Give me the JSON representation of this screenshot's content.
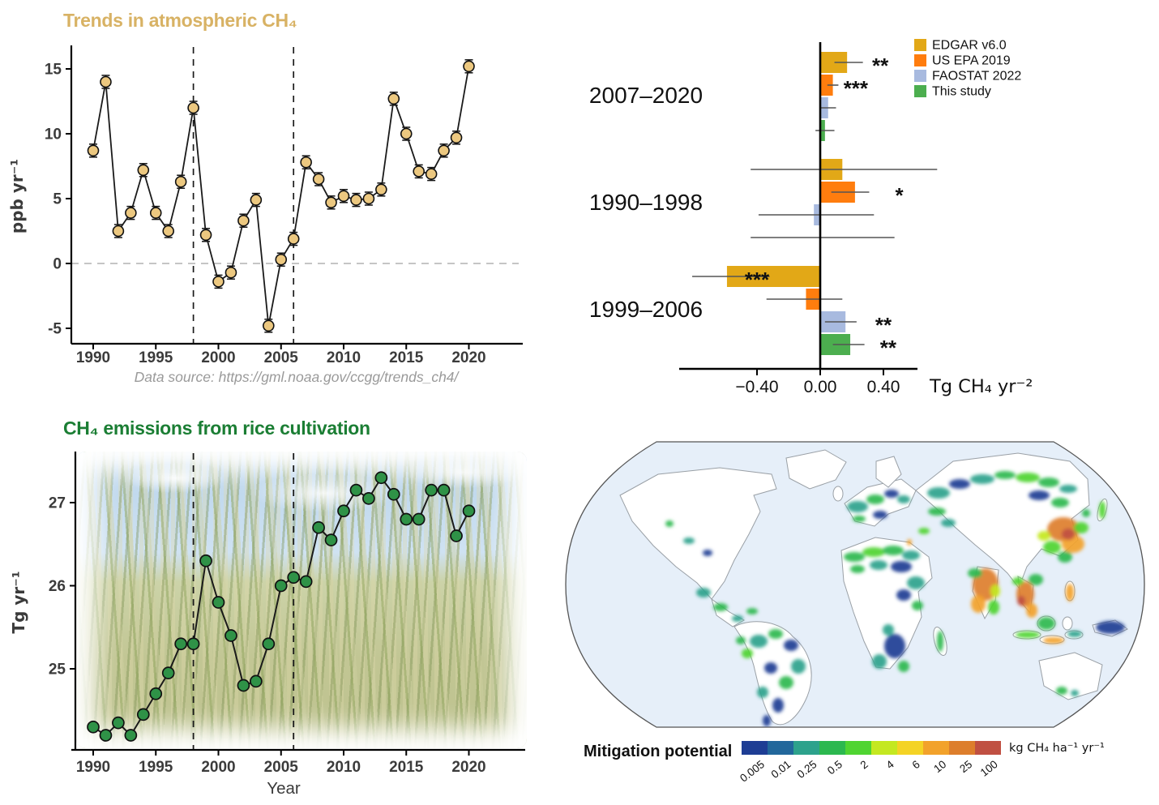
{
  "figure": {
    "background": "#ffffff"
  },
  "chart_data": [
    {
      "type": "line",
      "panel": "top-left",
      "title": "Trends in atmospheric CH₄",
      "ylabel": "ppb yr⁻¹",
      "xlabel": "",
      "source": "Data source: https://gml.noaa.gov/ccgg/trends_ch4/",
      "title_color": "#D8B264",
      "point_color": "#ECC880",
      "line_color": "#1a1a1a",
      "years": [
        1990,
        1991,
        1992,
        1993,
        1994,
        1995,
        1996,
        1997,
        1998,
        1999,
        2000,
        2001,
        2002,
        2003,
        2004,
        2005,
        2006,
        2007,
        2008,
        2009,
        2010,
        2011,
        2012,
        2013,
        2014,
        2015,
        2016,
        2017,
        2018,
        2019,
        2020
      ],
      "values": [
        8.7,
        14.0,
        2.5,
        3.9,
        7.2,
        3.9,
        2.5,
        6.3,
        12.0,
        2.2,
        -1.4,
        -0.7,
        3.3,
        4.9,
        -4.8,
        0.3,
        1.9,
        7.8,
        6.5,
        4.7,
        5.2,
        4.9,
        5.0,
        5.7,
        12.7,
        10.0,
        7.1,
        6.9,
        8.7,
        9.7,
        15.2
      ],
      "error_bar": 0.5,
      "yticks": [
        -5,
        0,
        5,
        10,
        15
      ],
      "xticks": [
        1990,
        1995,
        2000,
        2005,
        2010,
        2015,
        2020
      ],
      "ylim": [
        -6.9,
        16.6
      ],
      "dashed_vlines": [
        1998,
        2006
      ],
      "zero_line": true
    },
    {
      "type": "bar",
      "panel": "top-right",
      "orientation": "horizontal",
      "xlabel": "Tg CH₄ yr⁻²",
      "xticks": [
        -0.4,
        0.0,
        0.4
      ],
      "xtick_labels": [
        "−0.40",
        "0.00",
        "0.40"
      ],
      "groups": [
        "2007–2020",
        "1990–1998",
        "1999–2006"
      ],
      "series": [
        {
          "name": "EDGAR v6.0",
          "color": "#E2A817",
          "values": [
            0.17,
            0.14,
            -0.59
          ],
          "ci_low": [
            0.09,
            -0.44,
            -0.81
          ],
          "ci_high": [
            0.27,
            0.74,
            -0.32
          ],
          "sig": [
            "**",
            "",
            "***"
          ],
          "sig_x": [
            0.38,
            null,
            -0.4
          ]
        },
        {
          "name": "US EPA 2019",
          "color": "#FF7D0E",
          "values": [
            0.08,
            0.22,
            -0.09
          ],
          "ci_low": [
            0.045,
            0.07,
            -0.34
          ],
          "ci_high": [
            0.115,
            0.31,
            0.14
          ],
          "sig": [
            "***",
            "*",
            ""
          ],
          "sig_x": [
            0.225,
            0.5,
            null
          ]
        },
        {
          "name": "FAOSTAT 2022",
          "color": "#A8BADF",
          "values": [
            0.05,
            -0.04,
            0.16
          ],
          "ci_low": [
            0.0,
            -0.39,
            0.03
          ],
          "ci_high": [
            0.1,
            0.34,
            0.23
          ],
          "sig": [
            "",
            "",
            "**"
          ],
          "sig_x": [
            null,
            null,
            0.4
          ]
        },
        {
          "name": "This study",
          "color": "#4CAE4F",
          "values": [
            0.03,
            0.005,
            0.19
          ],
          "ci_low": [
            -0.03,
            -0.44,
            0.08
          ],
          "ci_high": [
            0.09,
            0.47,
            0.28
          ],
          "sig": [
            "",
            "",
            "**"
          ],
          "sig_x": [
            null,
            null,
            0.43
          ]
        }
      ]
    },
    {
      "type": "line",
      "panel": "bottom-left",
      "title": "CH₄ emissions from rice cultivation",
      "ylabel": "Tg yr⁻¹",
      "xlabel": "Year",
      "title_color": "#1B7E34",
      "point_color": "#2F9247",
      "line_color": "#1a1a1a",
      "years": [
        1990,
        1991,
        1992,
        1993,
        1994,
        1995,
        1996,
        1997,
        1998,
        1999,
        2000,
        2001,
        2002,
        2003,
        2004,
        2005,
        2006,
        2007,
        2008,
        2009,
        2010,
        2011,
        2012,
        2013,
        2014,
        2015,
        2016,
        2017,
        2018,
        2019,
        2020
      ],
      "values": [
        24.3,
        24.2,
        24.35,
        24.2,
        24.45,
        24.7,
        24.95,
        25.3,
        25.3,
        26.3,
        25.8,
        25.4,
        24.8,
        24.85,
        25.3,
        26.0,
        26.1,
        26.05,
        26.7,
        26.55,
        26.9,
        27.15,
        27.05,
        27.3,
        27.1,
        26.8,
        26.8,
        27.15,
        27.15,
        26.6,
        26.9
      ],
      "yticks": [
        25,
        26,
        27
      ],
      "xticks": [
        1990,
        1995,
        2000,
        2005,
        2010,
        2015,
        2020
      ],
      "dashed_vlines": [
        1998,
        2006
      ],
      "background": "rice-paddy-photo"
    },
    {
      "type": "map",
      "panel": "bottom-right",
      "projection": "robinson-like",
      "legend_title": "Mitigation potential",
      "unit": "kg CH₄ ha⁻¹ yr⁻¹",
      "scale_labels": [
        "0.005",
        "0.01",
        "0.25",
        "0.5",
        "2",
        "4",
        "6",
        "10",
        "25",
        "100"
      ],
      "scale_colors": [
        "#1e3d94",
        "#22679b",
        "#2da28c",
        "#2cb84f",
        "#4fd431",
        "#c4e821",
        "#f4d325",
        "#f2a22b",
        "#dd7e2c",
        "#c05042"
      ],
      "ocean_color": "#e6eff9",
      "land_color": "#ffffff",
      "color_keys": {
        "navy": "#1e3d94",
        "steel": "#22679b",
        "teal": "#2da28c",
        "green": "#2cb84f",
        "lime": "#4fd431",
        "ygreen": "#c4e821",
        "yellow": "#f4d325",
        "ltorange": "#f2a22b",
        "orange": "#dd7e2c",
        "red": "#c05042"
      },
      "regions": [
        [
          398,
          122,
          13,
          7,
          "teal"
        ],
        [
          420,
          113,
          11,
          6,
          "green"
        ],
        [
          440,
          106,
          9,
          5,
          "navy"
        ],
        [
          455,
          113,
          8,
          5,
          "teal"
        ],
        [
          426,
          132,
          9,
          5,
          "navy"
        ],
        [
          400,
          137,
          8,
          4,
          "green"
        ],
        [
          498,
          105,
          14,
          7,
          "teal"
        ],
        [
          524,
          94,
          13,
          6,
          "navy"
        ],
        [
          552,
          88,
          15,
          6,
          "teal"
        ],
        [
          580,
          83,
          13,
          5,
          "green"
        ],
        [
          608,
          86,
          15,
          6,
          "lime"
        ],
        [
          634,
          92,
          13,
          6,
          "green"
        ],
        [
          658,
          100,
          11,
          5,
          "teal"
        ],
        [
          622,
          108,
          13,
          6,
          "navy"
        ],
        [
          648,
          117,
          11,
          6,
          "green"
        ],
        [
          496,
          128,
          11,
          5,
          "green"
        ],
        [
          510,
          142,
          9,
          5,
          "teal"
        ],
        [
          480,
          152,
          7,
          4,
          "lime"
        ],
        [
          462,
          166,
          3,
          4,
          "ltorange"
        ],
        [
          652,
          150,
          20,
          15,
          "orange"
        ],
        [
          664,
          168,
          14,
          11,
          "ltorange"
        ],
        [
          638,
          172,
          11,
          8,
          "lime"
        ],
        [
          654,
          184,
          9,
          7,
          "green"
        ],
        [
          674,
          148,
          9,
          7,
          "lime"
        ],
        [
          628,
          158,
          8,
          6,
          "ygreen"
        ],
        [
          658,
          156,
          8,
          7,
          "red"
        ],
        [
          680,
          130,
          5,
          5,
          "green"
        ],
        [
          556,
          218,
          16,
          20,
          "orange"
        ],
        [
          547,
          242,
          9,
          11,
          "ltorange"
        ],
        [
          566,
          246,
          7,
          9,
          "lime"
        ],
        [
          543,
          204,
          9,
          6,
          "green"
        ],
        [
          568,
          226,
          6,
          8,
          "ygreen"
        ],
        [
          605,
          230,
          11,
          16,
          "orange"
        ],
        [
          613,
          250,
          7,
          9,
          "ltorange"
        ],
        [
          596,
          214,
          7,
          5,
          "lime"
        ],
        [
          618,
          212,
          9,
          7,
          "green"
        ],
        [
          600,
          238,
          5,
          6,
          "red"
        ],
        [
          631,
          266,
          11,
          8,
          "green"
        ],
        [
          608,
          280,
          15,
          4,
          "lime"
        ],
        [
          640,
          287,
          13,
          4,
          "ltorange"
        ],
        [
          666,
          279,
          9,
          4,
          "teal"
        ],
        [
          660,
          228,
          5,
          11,
          "ltorange"
        ],
        [
          700,
          126,
          4,
          11,
          "lime"
        ],
        [
          710,
          271,
          18,
          8,
          "navy"
        ],
        [
          394,
          184,
          13,
          6,
          "green"
        ],
        [
          418,
          178,
          14,
          6,
          "lime"
        ],
        [
          442,
          176,
          13,
          6,
          "green"
        ],
        [
          464,
          182,
          11,
          6,
          "teal"
        ],
        [
          452,
          196,
          13,
          7,
          "navy"
        ],
        [
          424,
          194,
          11,
          6,
          "teal"
        ],
        [
          398,
          199,
          9,
          5,
          "green"
        ],
        [
          470,
          216,
          11,
          8,
          "teal"
        ],
        [
          455,
          231,
          9,
          7,
          "navy"
        ],
        [
          472,
          244,
          7,
          6,
          "green"
        ],
        [
          444,
          294,
          13,
          15,
          "navy"
        ],
        [
          425,
          313,
          9,
          9,
          "teal"
        ],
        [
          455,
          319,
          7,
          7,
          "green"
        ],
        [
          436,
          274,
          7,
          7,
          "teal"
        ],
        [
          500,
          288,
          4,
          13,
          "green"
        ],
        [
          276,
          288,
          11,
          8,
          "teal"
        ],
        [
          297,
          279,
          9,
          6,
          "green"
        ],
        [
          316,
          293,
          9,
          7,
          "navy"
        ],
        [
          325,
          319,
          9,
          9,
          "teal"
        ],
        [
          310,
          339,
          9,
          8,
          "green"
        ],
        [
          291,
          321,
          8,
          7,
          "navy"
        ],
        [
          281,
          351,
          7,
          7,
          "teal"
        ],
        [
          300,
          367,
          7,
          9,
          "navy"
        ],
        [
          286,
          386,
          5,
          7,
          "navy"
        ],
        [
          262,
          303,
          7,
          6,
          "lime"
        ],
        [
          254,
          287,
          6,
          5,
          "green"
        ],
        [
          208,
          228,
          9,
          6,
          "teal"
        ],
        [
          229,
          246,
          9,
          5,
          "green"
        ],
        [
          250,
          260,
          7,
          4,
          "teal"
        ],
        [
          268,
          251,
          7,
          4,
          "green"
        ],
        [
          190,
          164,
          7,
          4,
          "teal"
        ],
        [
          213,
          179,
          6,
          4,
          "navy"
        ],
        [
          166,
          143,
          5,
          4,
          "green"
        ],
        [
          650,
          349,
          7,
          5,
          "green"
        ],
        [
          666,
          352,
          5,
          4,
          "teal"
        ]
      ]
    }
  ]
}
